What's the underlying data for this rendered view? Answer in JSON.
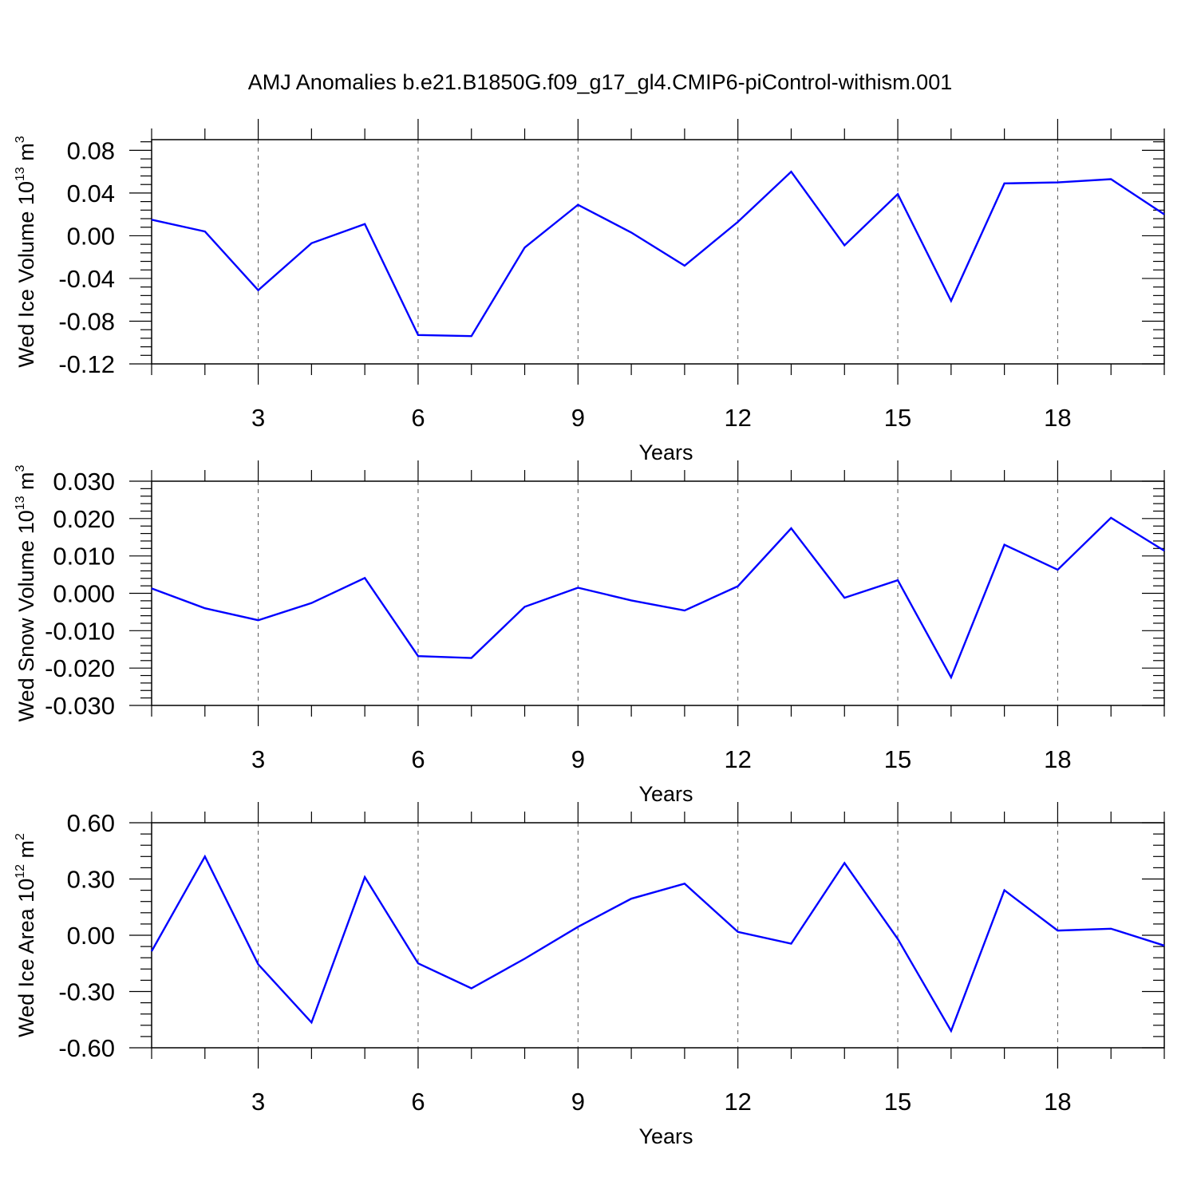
{
  "title": "AMJ Anomalies b.e21.B1850G.f09_g17_gl4.CMIP6-piControl-withism.001",
  "colors": {
    "line": "#0000ff",
    "axis": "#000000",
    "grid": "#555555"
  },
  "chart_data": [
    {
      "type": "line",
      "xlabel": "Years",
      "ylabel": {
        "text": "Wed Ice Volume 10",
        "sup1": "13",
        "mid": " m",
        "sup2": "3"
      },
      "xlim": [
        1,
        20
      ],
      "ylim": [
        -0.12,
        0.09
      ],
      "xticks": [
        3,
        6,
        9,
        12,
        15,
        18
      ],
      "xtick_labels": [
        "3",
        "6",
        "9",
        "12",
        "15",
        "18"
      ],
      "yticks": [
        -0.12,
        -0.08,
        -0.04,
        0.0,
        0.04,
        0.08
      ],
      "ytick_labels": [
        "-0.12",
        "-0.08",
        "-0.04",
        "0.00",
        "0.04",
        "0.08"
      ],
      "x": [
        1,
        2,
        3,
        4,
        5,
        6,
        7,
        8,
        9,
        10,
        11,
        12,
        13,
        14,
        15,
        16,
        17,
        18,
        19,
        20
      ],
      "series": [
        {
          "values": [
            0.015,
            0.004,
            -0.051,
            -0.007,
            0.011,
            -0.093,
            -0.094,
            -0.011,
            0.029,
            0.003,
            -0.028,
            0.013,
            0.06,
            -0.009,
            0.039,
            -0.061,
            0.049,
            0.05,
            0.053,
            0.02
          ]
        }
      ]
    },
    {
      "type": "line",
      "xlabel": "Years",
      "ylabel": {
        "text": "Wed Snow Volume 10",
        "sup1": "13",
        "mid": " m",
        "sup2": "3"
      },
      "xlim": [
        1,
        20
      ],
      "ylim": [
        -0.03,
        0.03
      ],
      "xticks": [
        3,
        6,
        9,
        12,
        15,
        18
      ],
      "xtick_labels": [
        "3",
        "6",
        "9",
        "12",
        "15",
        "18"
      ],
      "yticks": [
        -0.03,
        -0.02,
        -0.01,
        0.0,
        0.01,
        0.02,
        0.03
      ],
      "ytick_labels": [
        "-0.030",
        "-0.020",
        "-0.010",
        "0.000",
        "0.010",
        "0.020",
        "0.030"
      ],
      "x": [
        1,
        2,
        3,
        4,
        5,
        6,
        7,
        8,
        9,
        10,
        11,
        12,
        13,
        14,
        15,
        16,
        17,
        18,
        19,
        20
      ],
      "series": [
        {
          "values": [
            0.0013,
            -0.004,
            -0.0072,
            -0.0026,
            0.0041,
            -0.0168,
            -0.0173,
            -0.0036,
            0.0015,
            -0.0019,
            -0.0046,
            0.0019,
            0.0174,
            -0.0012,
            0.0035,
            -0.0225,
            0.013,
            0.0063,
            0.0202,
            0.0114
          ]
        }
      ]
    },
    {
      "type": "line",
      "xlabel": "Years",
      "ylabel": {
        "text": "Wed Ice Area 10",
        "sup1": "12",
        "mid": " m",
        "sup2": "2"
      },
      "xlim": [
        1,
        20
      ],
      "ylim": [
        -0.6,
        0.6
      ],
      "xticks": [
        3,
        6,
        9,
        12,
        15,
        18
      ],
      "xtick_labels": [
        "3",
        "6",
        "9",
        "12",
        "15",
        "18"
      ],
      "yticks": [
        -0.6,
        -0.3,
        0.0,
        0.3,
        0.6
      ],
      "ytick_labels": [
        "-0.60",
        "-0.30",
        "0.00",
        "0.30",
        "0.60"
      ],
      "x": [
        1,
        2,
        3,
        4,
        5,
        6,
        7,
        8,
        9,
        10,
        11,
        12,
        13,
        14,
        15,
        16,
        17,
        18,
        19,
        20
      ],
      "series": [
        {
          "values": [
            -0.085,
            0.42,
            -0.155,
            -0.465,
            0.31,
            -0.15,
            -0.283,
            -0.125,
            0.045,
            0.195,
            0.275,
            0.018,
            -0.045,
            0.385,
            -0.02,
            -0.51,
            0.24,
            0.025,
            0.035,
            -0.055
          ]
        }
      ]
    }
  ]
}
